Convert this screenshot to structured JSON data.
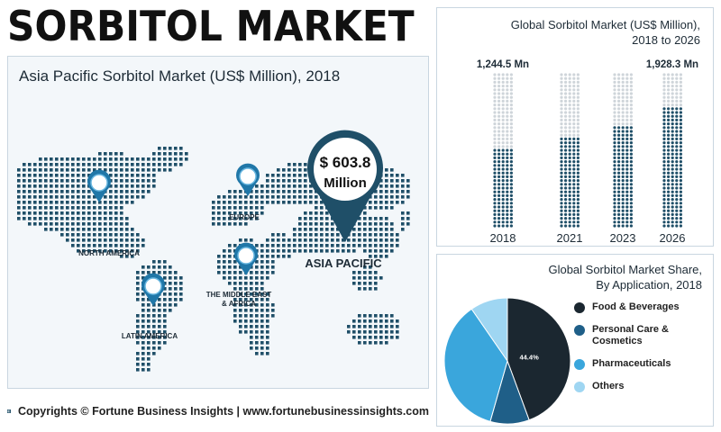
{
  "page": {
    "title": "SORBITOL MARKET"
  },
  "map": {
    "title": "Asia Pacific Sorbitol Market (US$ Million), 2018",
    "regions": [
      "NORTH AMERICA",
      "EUROPE",
      "THE MIDDLE EAST",
      "& AFRICA",
      "LATIN AMERICA",
      "ASIA PACIFIC"
    ],
    "highlight_value": "$ 603.8",
    "highlight_unit": "Million"
  },
  "footer": {
    "text": "Copyrights © Fortune Business Insights | www.fortunebusinessinsights.com"
  },
  "colors": {
    "dark_teal": "#1f4f68",
    "light_gray_dot": "#cfd5da",
    "pie_food": "#1b2730",
    "pie_personal": "#1f5f88",
    "pie_pharma": "#3aa6dc",
    "pie_others": "#9fd6f2"
  },
  "chart_data": [
    {
      "type": "bar",
      "title": "Global Sorbitol Market (US$ Million),",
      "subtitle": "2018 to 2026",
      "categories": [
        "2018",
        "2021",
        "2023",
        "2026"
      ],
      "values": [
        1244.5,
        1450,
        1600,
        1928.3
      ],
      "data_labels": [
        "1,244.5 Mn",
        "",
        "",
        "1,928.3 Mn"
      ],
      "ylim": [
        0,
        2450
      ]
    },
    {
      "type": "pie",
      "title": "Global Sorbitol Market Share,",
      "subtitle": "By Application, 2018",
      "labels": [
        "Food & Beverages",
        "Personal Care & Cosmetics",
        "Pharmaceuticals",
        "Others"
      ],
      "legend_lines": [
        [
          "Food & Beverages"
        ],
        [
          "Personal Care &",
          "Cosmetics"
        ],
        [
          "Pharmaceuticals"
        ],
        [
          "Others"
        ]
      ],
      "values": [
        44.4,
        10,
        36,
        9.6
      ],
      "data_labels": [
        "44.4%",
        "",
        "",
        ""
      ],
      "legend_position": "right"
    }
  ]
}
